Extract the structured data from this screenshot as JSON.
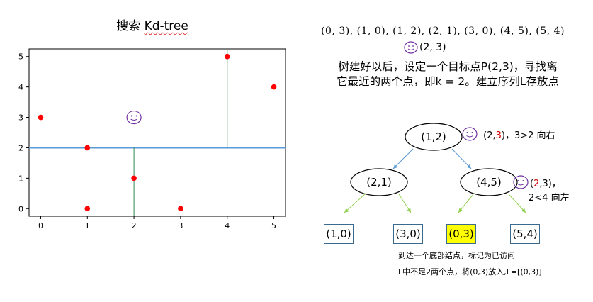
{
  "header": {
    "title_prefix": "搜索",
    "title_suffix": "Kd-tree",
    "points_list": "(0, 3), (1, 0), (1, 2), (2, 1), (3, 0), (4, 5), (5, 4)",
    "target_point": "(2, 3)",
    "description_line1": "树建好以后，设定一个目标点P(2,3)，寻找离",
    "description_line2": "它最近的两个点，即k = 2。建立序列L存放点"
  },
  "chart_data": {
    "type": "scatter",
    "x": [
      0,
      1,
      1,
      2,
      3,
      4,
      5
    ],
    "y": [
      3,
      0,
      2,
      1,
      0,
      5,
      4
    ],
    "target": {
      "x": 2,
      "y": 3,
      "marker": "smiley"
    },
    "xlim": [
      -0.25,
      5.25
    ],
    "ylim": [
      -0.25,
      5.25
    ],
    "xticks": [
      "0",
      "1",
      "2",
      "3",
      "4",
      "5"
    ],
    "yticks": [
      "0",
      "1",
      "2",
      "3",
      "4",
      "5"
    ],
    "point_color": "#ff0000",
    "split_lines": [
      {
        "orientation": "horizontal",
        "value": 2,
        "from": -0.25,
        "to": 5.25,
        "color": "#5b9bd5"
      },
      {
        "orientation": "vertical",
        "value": 2,
        "from": -0.25,
        "to": 2,
        "color": "#2e8b57"
      },
      {
        "orientation": "vertical",
        "value": 4,
        "from": 2,
        "to": 5.25,
        "color": "#2e8b57"
      }
    ]
  },
  "tree": {
    "root": "(1,2)",
    "left": "(2,1)",
    "right": "(4,5)",
    "leaves": [
      "(1,0)",
      "(3,0)",
      "(0,3)",
      "(5,4)"
    ],
    "highlight_leaf": "(0,3)",
    "highlight_color": "#ffff00",
    "colors": {
      "node_border": "#3a6b8f",
      "edge_level1": "#5b9bd5",
      "edge_level2": "#92d050",
      "smiley": "#7030a0",
      "red": "#d00000"
    }
  },
  "annotations": {
    "root_open": "(2,",
    "root_red": "3",
    "root_close": ")，",
    "root_cmp": "3>2 向右",
    "right_open": "(",
    "right_red": "2",
    "right_mid": ",3",
    "right_close": ")，",
    "right_cmp": "2<4 向左",
    "note1": "到达一个底部结点，标记为已访问",
    "note2": "L中不足2两个点，将(0,3)放入,L=[(0,3)]"
  }
}
